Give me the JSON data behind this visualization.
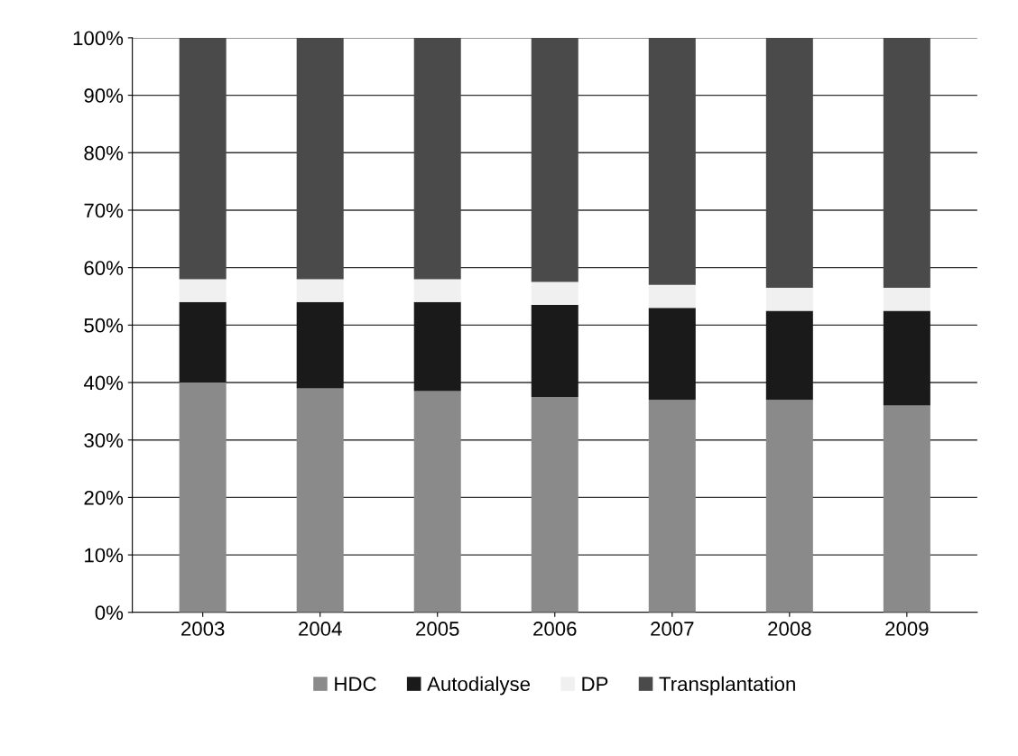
{
  "chart_data": {
    "type": "bar",
    "stacked": true,
    "categories": [
      "2003",
      "2004",
      "2005",
      "2006",
      "2007",
      "2008",
      "2009"
    ],
    "series": [
      {
        "name": "HDC",
        "color": "#8a8a8a",
        "values": [
          40,
          39,
          38.5,
          37.5,
          37,
          37,
          36
        ]
      },
      {
        "name": "Autodialyse",
        "color": "#1a1a1a",
        "values": [
          14,
          15,
          15.5,
          16,
          16,
          15.5,
          16.5
        ]
      },
      {
        "name": "DP",
        "color": "#f0f0f0",
        "values": [
          4,
          4,
          4,
          4,
          4,
          4,
          4
        ]
      },
      {
        "name": "Transplantation",
        "color": "#4a4a4a",
        "values": [
          42,
          42,
          42,
          42.5,
          43,
          43.5,
          43.5
        ]
      }
    ],
    "ylim": [
      0,
      100
    ],
    "yticks": [
      {
        "value": 0,
        "label": "0%"
      },
      {
        "value": 10,
        "label": "10%"
      },
      {
        "value": 20,
        "label": "20%"
      },
      {
        "value": 30,
        "label": "30%"
      },
      {
        "value": 40,
        "label": "40%"
      },
      {
        "value": 50,
        "label": "50%"
      },
      {
        "value": 60,
        "label": "60%"
      },
      {
        "value": 70,
        "label": "70%"
      },
      {
        "value": 80,
        "label": "80%"
      },
      {
        "value": 90,
        "label": "90%"
      },
      {
        "value": 100,
        "label": "100%"
      }
    ],
    "grid": "y",
    "legend": "bottom"
  }
}
